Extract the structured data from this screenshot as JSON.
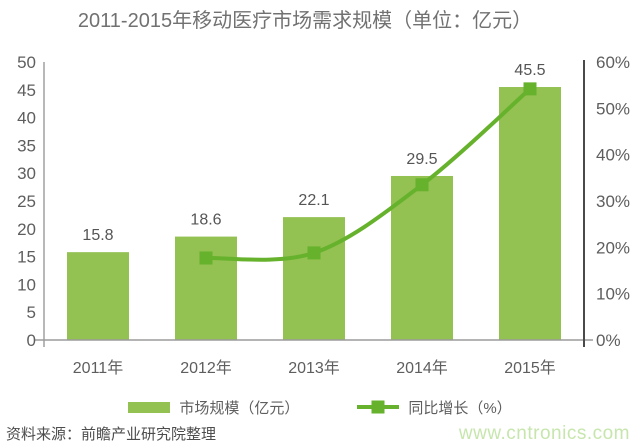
{
  "title": "2011-2015年移动医疗市场需求规模（单位：亿元）",
  "chart_data": {
    "type": "bar",
    "subtype": "bar-line-combo",
    "categories": [
      "2011年",
      "2012年",
      "2013年",
      "2014年",
      "2015年"
    ],
    "series": [
      {
        "name": "市场规模（亿元）",
        "type": "bar",
        "axis": "left",
        "values": [
          15.8,
          18.6,
          22.1,
          29.5,
          45.5
        ],
        "labels": [
          "15.8",
          "18.6",
          "22.1",
          "29.5",
          "45.5"
        ]
      },
      {
        "name": "同比增长（%）",
        "type": "line",
        "axis": "right",
        "values": [
          null,
          17.7,
          18.8,
          33.5,
          54.2
        ]
      }
    ],
    "left_axis": {
      "min": 0,
      "max": 50,
      "step": 5,
      "ticks": [
        "0",
        "5",
        "10",
        "15",
        "20",
        "25",
        "30",
        "35",
        "40",
        "45",
        "50"
      ]
    },
    "right_axis": {
      "min": 0,
      "max": 60,
      "step": 10,
      "ticks": [
        "0%",
        "10%",
        "20%",
        "30%",
        "40%",
        "50%",
        "60%"
      ]
    },
    "grid": false,
    "legend_position": "bottom"
  },
  "legend": [
    {
      "label": "市场规模（亿元）",
      "swatch": "bar"
    },
    {
      "label": "同比增长（%）",
      "swatch": "line-marker"
    }
  ],
  "footer": {
    "source": "资料来源：前瞻产业研究院整理",
    "watermark": "www.cntronics.com"
  },
  "colors": {
    "bar": "#93C152",
    "line": "#66B22C",
    "title_text": "#717171",
    "tick_text": "#5E5E5E",
    "value_label_text": "#555555",
    "left_axis_line": "#A6A6A6",
    "right_axis_line": "#4A4A4A",
    "baseline": "#9B9B9B",
    "source_text": "#4D4D4D",
    "watermark": "#C7E6AE"
  }
}
